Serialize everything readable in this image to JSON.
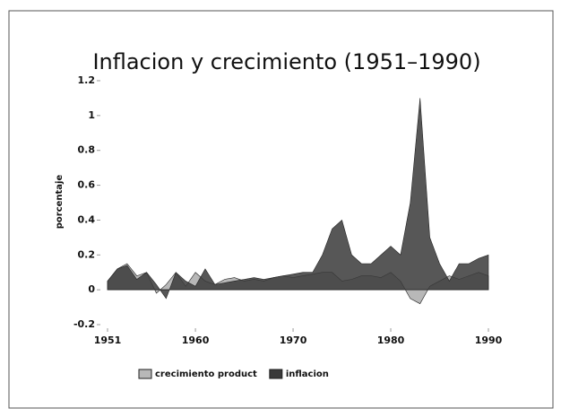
{
  "chart_data": {
    "type": "area",
    "title": "Inflacion y crecimiento (1951–1990)",
    "y_label": "porcentaje",
    "x": [
      1951,
      1952,
      1953,
      1954,
      1955,
      1956,
      1957,
      1958,
      1959,
      1960,
      1961,
      1962,
      1963,
      1964,
      1965,
      1966,
      1967,
      1968,
      1969,
      1970,
      1971,
      1972,
      1973,
      1974,
      1975,
      1976,
      1977,
      1978,
      1979,
      1980,
      1981,
      1982,
      1983,
      1984,
      1985,
      1986,
      1987,
      1988,
      1989,
      1990
    ],
    "series": [
      {
        "name": "crecimiento product",
        "color": "#b8b8b8",
        "values": [
          0.05,
          0.12,
          0.15,
          0.08,
          0.1,
          -0.02,
          0.03,
          0.1,
          0.02,
          0.1,
          0.05,
          0.03,
          0.06,
          0.07,
          0.05,
          0.06,
          0.05,
          0.07,
          0.08,
          0.07,
          0.08,
          0.09,
          0.1,
          0.1,
          0.05,
          0.06,
          0.08,
          0.08,
          0.07,
          0.1,
          0.05,
          -0.05,
          -0.08,
          0.02,
          0.05,
          0.08,
          0.06,
          0.08,
          0.1,
          0.08
        ]
      },
      {
        "name": "inflacion",
        "color": "#3a3a3a",
        "values": [
          0.05,
          0.12,
          0.14,
          0.06,
          0.1,
          0.03,
          -0.05,
          0.1,
          0.05,
          0.02,
          0.12,
          0.03,
          0.04,
          0.05,
          0.06,
          0.07,
          0.06,
          0.07,
          0.08,
          0.09,
          0.1,
          0.1,
          0.2,
          0.35,
          0.4,
          0.2,
          0.15,
          0.15,
          0.2,
          0.25,
          0.2,
          0.5,
          1.1,
          0.3,
          0.15,
          0.05,
          0.15,
          0.15,
          0.18,
          0.2
        ]
      }
    ],
    "xlim": [
      1951,
      1990
    ],
    "xticks": [
      1951,
      1960,
      1970,
      1980,
      1990
    ],
    "ylim": [
      -0.2,
      1.2
    ],
    "yticks": [
      -0.2,
      0,
      0.2,
      0.4,
      0.6,
      0.8,
      1,
      1.2
    ]
  }
}
